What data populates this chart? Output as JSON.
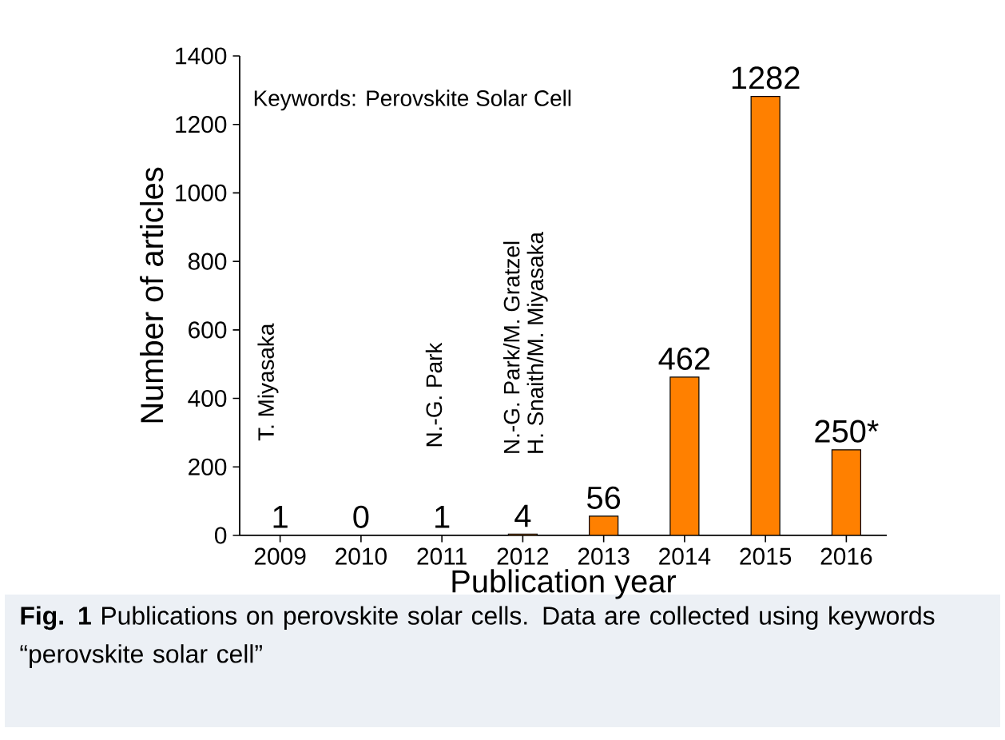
{
  "chart_data": {
    "type": "bar",
    "xlabel": "Publication year",
    "ylabel": "Number of articles",
    "categories": [
      "2009",
      "2010",
      "2011",
      "2012",
      "2013",
      "2014",
      "2015",
      "2016"
    ],
    "values": [
      1,
      0,
      1,
      4,
      56,
      462,
      1282,
      250
    ],
    "value_labels": [
      "1",
      "0",
      "1",
      "4",
      "56",
      "462",
      "1282",
      "250*"
    ],
    "color": "#ff8000",
    "ylim": [
      0,
      1400
    ],
    "yticks": [
      0,
      200,
      400,
      600,
      800,
      1000,
      1200,
      1400
    ],
    "annotations": [
      "Keywords: Perovskite Solar Cell",
      "T. Miyasaka",
      "N.-G. Park",
      "N.-G. Park/M. Gratzel",
      "H. Snaith/M. Miyasaka",
      "**Fig. 1** Publications on perovskite solar cells. Data are collected using keywords “perovskite solar cell”"
    ]
  }
}
